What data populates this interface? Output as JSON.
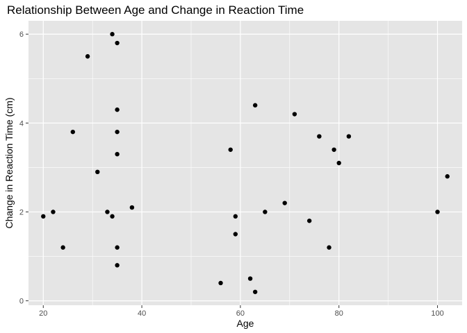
{
  "chart_data": {
    "type": "scatter",
    "title": "Relationship Between Age and Change in Reaction Time",
    "xlabel": "Age",
    "ylabel": "Change in Reaction Time (cm)",
    "xlim": [
      17,
      105
    ],
    "ylim": [
      -0.1,
      6.3
    ],
    "x_ticks": [
      20,
      40,
      60,
      80,
      100
    ],
    "y_ticks": [
      0,
      2,
      4,
      6
    ],
    "grid": true,
    "colors": {
      "panel_background": "#e5e5e5",
      "grid_major": "#ffffff",
      "point": "#000000",
      "tick_label": "#4d4d4d"
    },
    "points": [
      {
        "x": 20,
        "y": 1.9
      },
      {
        "x": 22,
        "y": 2.0
      },
      {
        "x": 24,
        "y": 1.2
      },
      {
        "x": 26,
        "y": 3.8
      },
      {
        "x": 29,
        "y": 5.5
      },
      {
        "x": 31,
        "y": 2.9
      },
      {
        "x": 33,
        "y": 2.0
      },
      {
        "x": 34,
        "y": 6.0
      },
      {
        "x": 34,
        "y": 1.9
      },
      {
        "x": 35,
        "y": 5.8
      },
      {
        "x": 35,
        "y": 4.3
      },
      {
        "x": 35,
        "y": 3.8
      },
      {
        "x": 35,
        "y": 3.3
      },
      {
        "x": 35,
        "y": 1.2
      },
      {
        "x": 35,
        "y": 0.8
      },
      {
        "x": 38,
        "y": 2.1
      },
      {
        "x": 56,
        "y": 0.4
      },
      {
        "x": 58,
        "y": 3.4
      },
      {
        "x": 59,
        "y": 1.9
      },
      {
        "x": 59,
        "y": 1.5
      },
      {
        "x": 62,
        "y": 0.5
      },
      {
        "x": 63,
        "y": 4.4
      },
      {
        "x": 63,
        "y": 0.2
      },
      {
        "x": 65,
        "y": 2.0
      },
      {
        "x": 69,
        "y": 2.2
      },
      {
        "x": 71,
        "y": 4.2
      },
      {
        "x": 74,
        "y": 1.8
      },
      {
        "x": 76,
        "y": 3.7
      },
      {
        "x": 78,
        "y": 1.2
      },
      {
        "x": 79,
        "y": 3.4
      },
      {
        "x": 80,
        "y": 3.1
      },
      {
        "x": 82,
        "y": 3.7
      },
      {
        "x": 100,
        "y": 2.0
      },
      {
        "x": 102,
        "y": 2.8
      }
    ]
  }
}
